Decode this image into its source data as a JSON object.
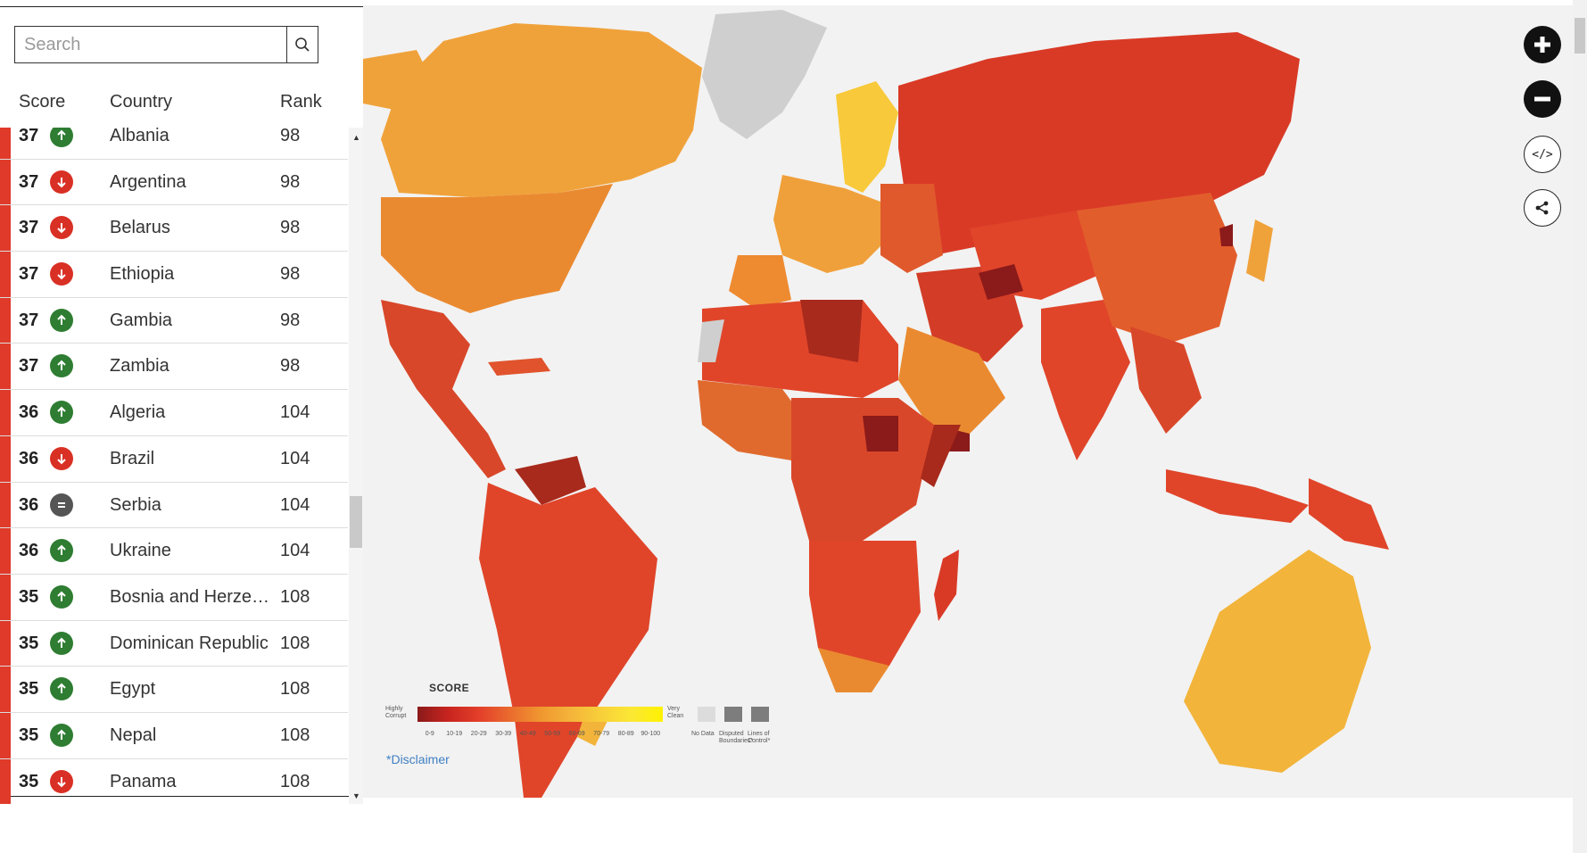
{
  "search": {
    "placeholder": "Search"
  },
  "table": {
    "headers": {
      "score": "Score",
      "country": "Country",
      "rank": "Rank"
    },
    "rows": [
      {
        "score": "37",
        "trend": "up",
        "country": "Albania",
        "rank": "98"
      },
      {
        "score": "37",
        "trend": "down",
        "country": "Argentina",
        "rank": "98"
      },
      {
        "score": "37",
        "trend": "down",
        "country": "Belarus",
        "rank": "98"
      },
      {
        "score": "37",
        "trend": "down",
        "country": "Ethiopia",
        "rank": "98"
      },
      {
        "score": "37",
        "trend": "up",
        "country": "Gambia",
        "rank": "98"
      },
      {
        "score": "37",
        "trend": "up",
        "country": "Zambia",
        "rank": "98"
      },
      {
        "score": "36",
        "trend": "up",
        "country": "Algeria",
        "rank": "104"
      },
      {
        "score": "36",
        "trend": "down",
        "country": "Brazil",
        "rank": "104"
      },
      {
        "score": "36",
        "trend": "same",
        "country": "Serbia",
        "rank": "104"
      },
      {
        "score": "36",
        "trend": "up",
        "country": "Ukraine",
        "rank": "104"
      },
      {
        "score": "35",
        "trend": "up",
        "country": "Bosnia and Herzegovina",
        "rank": "108"
      },
      {
        "score": "35",
        "trend": "up",
        "country": "Dominican Republic",
        "rank": "108"
      },
      {
        "score": "35",
        "trend": "up",
        "country": "Egypt",
        "rank": "108"
      },
      {
        "score": "35",
        "trend": "up",
        "country": "Nepal",
        "rank": "108"
      },
      {
        "score": "35",
        "trend": "down",
        "country": "Panama",
        "rank": "108"
      }
    ]
  },
  "colors": {
    "up": "#2e7d32",
    "down": "#d93025",
    "same": "#555555",
    "row_bar": "#e03a2a",
    "no_data": "#d0d0d0",
    "bands": [
      "#8b1a1a",
      "#c8241f",
      "#e33f2a",
      "#ea6a2e",
      "#f0962f",
      "#f4b43a",
      "#f8d03a",
      "#fbe834",
      "#fff200"
    ]
  },
  "legend": {
    "title": "SCORE",
    "low_label": "Highly Corrupt",
    "high_label": "Very Clean",
    "ticks": [
      "0-9",
      "10-19",
      "20-29",
      "30-39",
      "40-49",
      "50-59",
      "60-69",
      "70-79",
      "80-89",
      "90-100"
    ],
    "no_data": "No Data",
    "disputed": "Disputed Boundaries*",
    "lines_of_control": "Lines of Control*"
  },
  "disclaimer": {
    "prefix": "*",
    "text": "Disclaimer"
  },
  "controls": {
    "zoom_in": "zoom-in-icon",
    "zoom_out": "zoom-out-icon",
    "embed": "code-icon",
    "share": "share-icon"
  }
}
